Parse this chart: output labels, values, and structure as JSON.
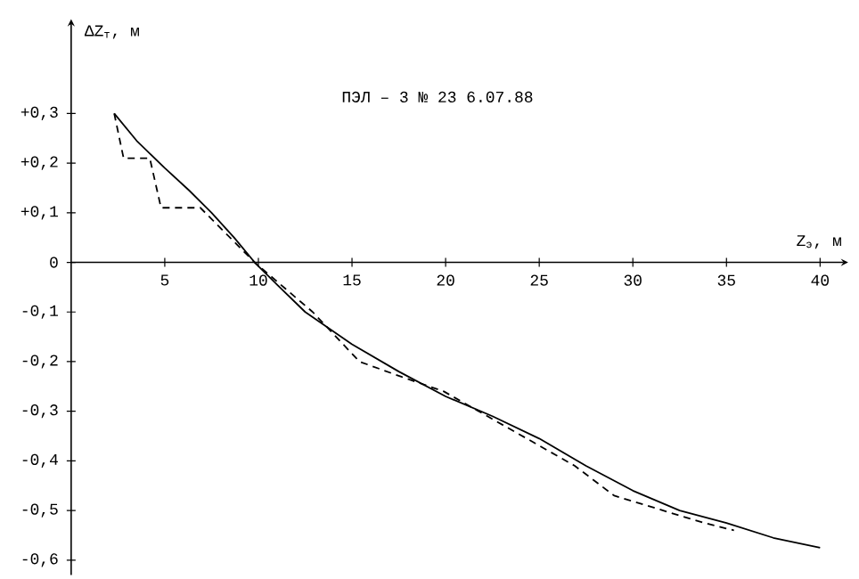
{
  "chart_data": {
    "type": "line",
    "xlabel": "Z$_{э}$, м",
    "ylabel": "ΔZ$_{т}$, м",
    "annotations": [
      "ПЭЛ – 3     № 23 6.07.88"
    ],
    "xlim": [
      0,
      41.5
    ],
    "ylim": [
      -0.63,
      0.49
    ],
    "xticks": [
      5,
      10,
      15,
      20,
      25,
      30,
      35,
      40
    ],
    "yticks": [
      {
        "value": 0.3,
        "label": "+0,3"
      },
      {
        "value": 0.2,
        "label": "+0,2"
      },
      {
        "value": 0.1,
        "label": "+0,1"
      },
      {
        "value": 0,
        "label": "0"
      },
      {
        "value": -0.1,
        "label": "-0,1"
      },
      {
        "value": -0.2,
        "label": "-0,2"
      },
      {
        "value": -0.3,
        "label": "-0,3"
      },
      {
        "value": -0.4,
        "label": "-0,4"
      },
      {
        "value": -0.5,
        "label": "-0,5"
      },
      {
        "value": -0.6,
        "label": "-0,6"
      }
    ],
    "grid": false,
    "marker": "none",
    "series": [
      {
        "color": "#000000",
        "line_style": "solid",
        "x": [
          2.3,
          3.5,
          5,
          6.3,
          7.5,
          8.7,
          9.8,
          11,
          12.5,
          15,
          17.5,
          20,
          22.5,
          25,
          27.5,
          30,
          32.5,
          35,
          37.5,
          40
        ],
        "values": [
          0.3,
          0.245,
          0.19,
          0.145,
          0.1,
          0.05,
          0,
          -0.045,
          -0.1,
          -0.165,
          -0.22,
          -0.27,
          -0.31,
          -0.355,
          -0.41,
          -0.46,
          -0.5,
          -0.525,
          -0.555,
          -0.575
        ]
      },
      {
        "color": "#000000",
        "line_style": "dashed",
        "x": [
          2.3,
          2.8,
          4.2,
          4.8,
          6.9,
          9.8,
          12.9,
          15.4,
          17.6,
          19.9,
          26.9,
          29,
          33.8,
          35.4
        ],
        "values": [
          0.3,
          0.21,
          0.21,
          0.11,
          0.11,
          0,
          -0.1,
          -0.2,
          -0.23,
          -0.26,
          -0.41,
          -0.47,
          -0.525,
          -0.54
        ]
      }
    ]
  }
}
